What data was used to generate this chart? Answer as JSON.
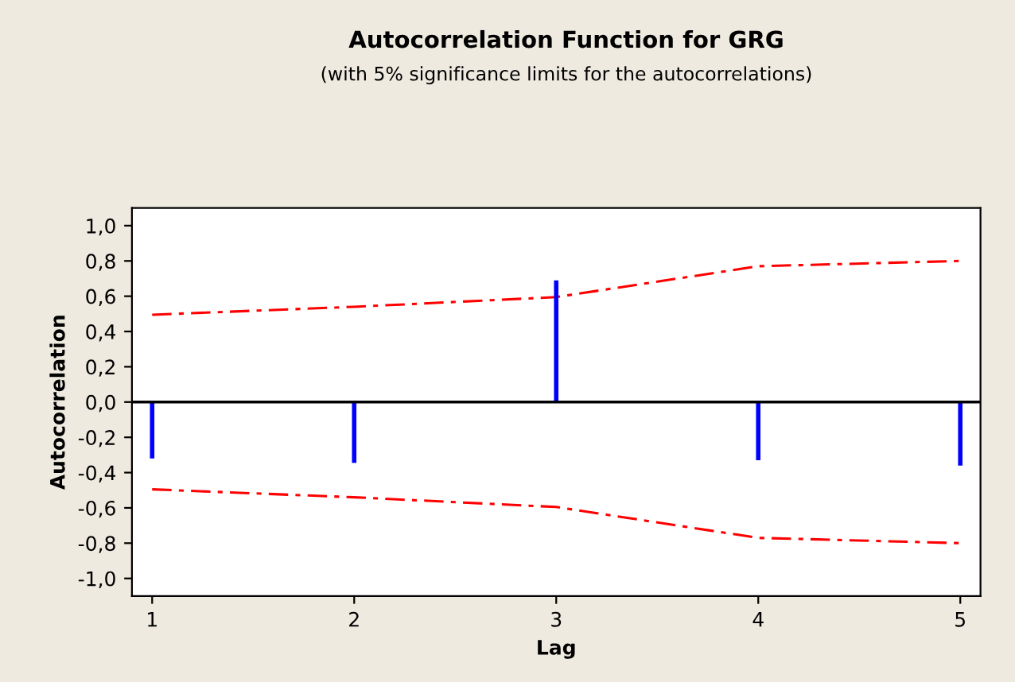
{
  "chart_data": {
    "type": "bar",
    "title": "Autocorrelation Function for GRG",
    "subtitle": "(with 5% significance limits for the autocorrelations)",
    "xlabel": "Lag",
    "ylabel": "Autocorrelation",
    "x": [
      1,
      2,
      3,
      4,
      5
    ],
    "series": [
      {
        "color": "#0000ff",
        "values": [
          -0.32,
          -0.345,
          0.69,
          -0.33,
          -0.36
        ]
      },
      {
        "type": "line",
        "color": "#ff0000",
        "line_style": "dashed",
        "values": [
          0.495,
          0.54,
          0.595,
          0.77,
          0.8
        ]
      },
      {
        "type": "line",
        "color": "#ff0000",
        "line_style": "dashed",
        "values": [
          -0.495,
          -0.54,
          -0.595,
          -0.77,
          -0.8
        ]
      }
    ],
    "xlim": [
      0.9,
      5.1
    ],
    "xticks": [
      1,
      2,
      3,
      4,
      5
    ],
    "ylim": [
      -1.1,
      1.1
    ],
    "yticks": [
      {
        "value": -1.0,
        "label": "-1,0"
      },
      {
        "value": -0.8,
        "label": "-0,8"
      },
      {
        "value": -0.6,
        "label": "-0,6"
      },
      {
        "value": -0.4,
        "label": "-0,4"
      },
      {
        "value": -0.2,
        "label": "-0,2"
      },
      {
        "value": 0.0,
        "label": "0,0"
      },
      {
        "value": 0.2,
        "label": "0,2"
      },
      {
        "value": 0.4,
        "label": "0,4"
      },
      {
        "value": 0.6,
        "label": "0,6"
      },
      {
        "value": 0.8,
        "label": "0,8"
      },
      {
        "value": 1.0,
        "label": "1,0"
      }
    ],
    "ref_lines": [
      {
        "axis": "y",
        "value": 0,
        "color": "#000000",
        "line_style": "solid"
      }
    ],
    "grid": false,
    "legend": false
  }
}
